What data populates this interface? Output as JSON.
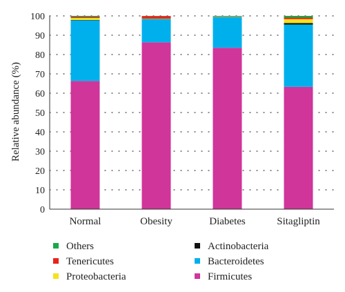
{
  "chart_data": {
    "type": "bar",
    "stacked": true,
    "title": "",
    "xlabel": "",
    "ylabel": "Relative abundance (%)",
    "ylim": [
      0,
      100
    ],
    "yticks": [
      "0",
      "10",
      "20",
      "30",
      "40",
      "50",
      "60",
      "70",
      "80",
      "90",
      "100"
    ],
    "grid": "dotted",
    "legend_position": "bottom",
    "categories": [
      "Normal",
      "Obesity",
      "Diabetes",
      "Sitagliptin"
    ],
    "series": [
      {
        "name": "Firmicutes",
        "color": "#d0359a",
        "values": [
          66.3,
          86.3,
          83.5,
          63.3
        ]
      },
      {
        "name": "Bacteroidetes",
        "color": "#00b0ec",
        "values": [
          31.4,
          12.0,
          15.9,
          32.2
        ]
      },
      {
        "name": "Actinobacteria",
        "color": "#111111",
        "values": [
          0.2,
          0.1,
          0.1,
          0.8
        ]
      },
      {
        "name": "Proteobacteria",
        "color": "#f2e31c",
        "values": [
          1.0,
          0.2,
          0.2,
          2.0
        ]
      },
      {
        "name": "Tenericutes",
        "color": "#e8231b",
        "values": [
          0.6,
          1.3,
          0.1,
          0.8
        ]
      },
      {
        "name": "Others",
        "color": "#1aa84a",
        "values": [
          0.5,
          0.1,
          0.2,
          0.9
        ]
      }
    ],
    "legend_order": [
      "Others",
      "Actinobacteria",
      "Tenericutes",
      "Bacteroidetes",
      "Proteobacteria",
      "Firmicutes"
    ]
  }
}
